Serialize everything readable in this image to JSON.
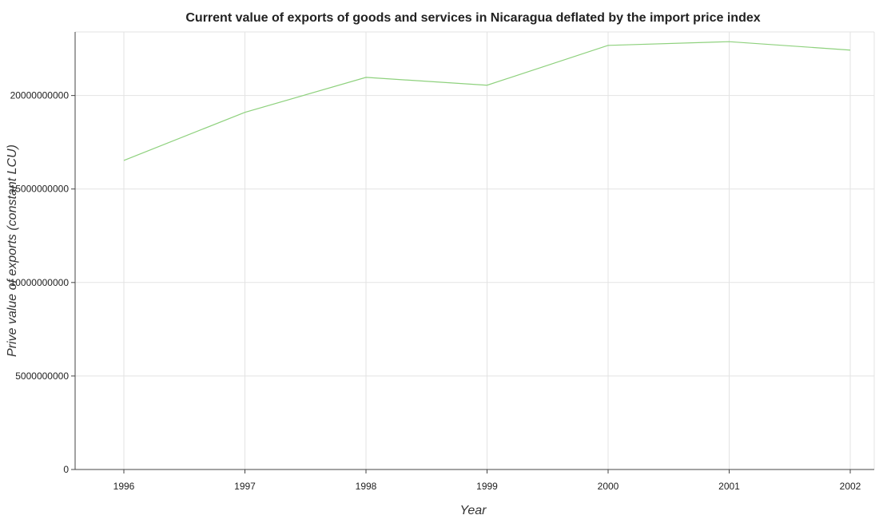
{
  "chart_data": {
    "type": "line",
    "title": "Current value of exports of goods and services in Nicaragua deflated by the import price index",
    "xlabel": "Year",
    "ylabel": "Prive value of exports (constant LCU)",
    "categories": [
      "1996",
      "1997",
      "1998",
      "1999",
      "2000",
      "2001",
      "2002"
    ],
    "series": [
      {
        "values": [
          16530000000,
          19100000000,
          20970000000,
          20550000000,
          22680000000,
          22880000000,
          22430000000
        ],
        "color": "#8ed17d"
      }
    ],
    "yticks": [
      0,
      5000000000,
      10000000000,
      15000000000,
      20000000000
    ],
    "ytick_labels": [
      "0",
      "5000000000",
      "10000000000",
      "15000000000",
      "20000000000"
    ],
    "ylim": [
      0,
      23400000000
    ],
    "grid": true,
    "legend": "none"
  }
}
